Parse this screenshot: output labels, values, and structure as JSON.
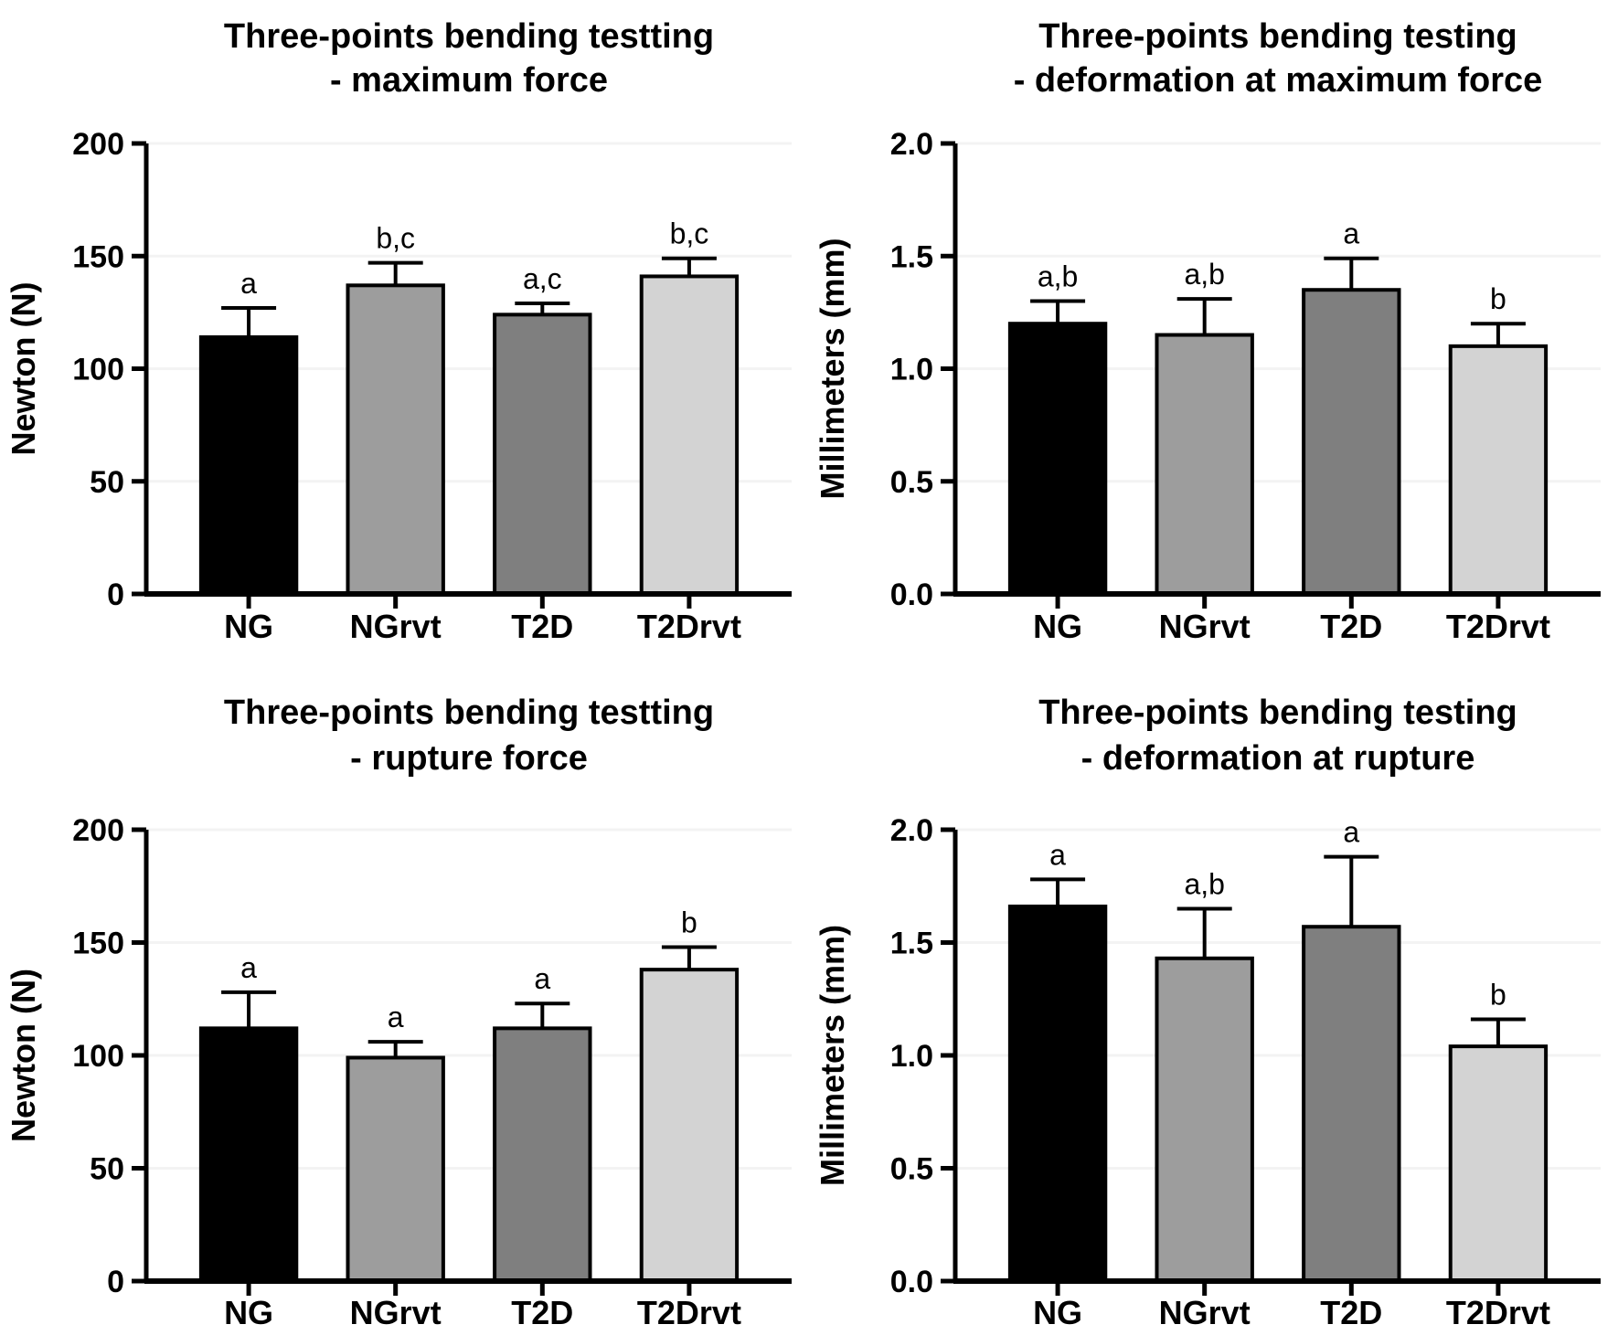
{
  "figure": {
    "background": "#ffffff",
    "text_color": "#000000",
    "axis_color": "#000000",
    "gridline_color": "#f3f3f3",
    "bar_border_color": "#000000",
    "bar_palette": [
      "#000000",
      "#9d9d9d",
      "#7f7f7f",
      "#d3d3d3"
    ]
  },
  "chart_data": [
    {
      "id": "maximum-force",
      "type": "bar",
      "title_line1": "Three-points bending testting",
      "title_line2": "- maximum force",
      "ylabel": "Newton (N)",
      "xlabel": "",
      "ylim": [
        0,
        200
      ],
      "yticks": [
        0,
        50,
        100,
        150,
        200
      ],
      "ytick_labels": [
        "0",
        "50",
        "100",
        "150",
        "200"
      ],
      "grid": true,
      "legend_position": "none",
      "categories": [
        "NG",
        "NGrvt",
        "T2D",
        "T2Drvt"
      ],
      "values": [
        114,
        137,
        124,
        141
      ],
      "errors_plus": [
        13,
        10,
        5,
        8
      ],
      "sig_labels": [
        "a",
        "b,c",
        "a,c",
        "b,c"
      ],
      "bar_colors": [
        "#000000",
        "#9d9d9d",
        "#7f7f7f",
        "#d3d3d3"
      ]
    },
    {
      "id": "deformation-at-maximum-force",
      "type": "bar",
      "title_line1": "Three-points bending testing",
      "title_line2": "- deformation at maximum force",
      "ylabel": "Millimeters (mm)",
      "xlabel": "",
      "ylim": [
        0,
        2.0
      ],
      "yticks": [
        0,
        0.5,
        1.0,
        1.5,
        2.0
      ],
      "ytick_labels": [
        "0.0",
        "0.5",
        "1.0",
        "1.5",
        "2.0"
      ],
      "grid": true,
      "legend_position": "none",
      "categories": [
        "NG",
        "NGrvt",
        "T2D",
        "T2Drvt"
      ],
      "values": [
        1.2,
        1.15,
        1.35,
        1.1
      ],
      "errors_plus": [
        0.1,
        0.16,
        0.14,
        0.1
      ],
      "sig_labels": [
        "a,b",
        "a,b",
        "a",
        "b"
      ],
      "bar_colors": [
        "#000000",
        "#9d9d9d",
        "#7f7f7f",
        "#d3d3d3"
      ]
    },
    {
      "id": "rupture-force",
      "type": "bar",
      "title_line1": "Three-points bending testting",
      "title_line2": "- rupture force",
      "ylabel": "Newton (N)",
      "xlabel": "",
      "ylim": [
        0,
        200
      ],
      "yticks": [
        0,
        50,
        100,
        150,
        200
      ],
      "ytick_labels": [
        "0",
        "50",
        "100",
        "150",
        "200"
      ],
      "grid": true,
      "legend_position": "none",
      "categories": [
        "NG",
        "NGrvt",
        "T2D",
        "T2Drvt"
      ],
      "values": [
        112,
        99,
        112,
        138
      ],
      "errors_plus": [
        16,
        7,
        11,
        10
      ],
      "sig_labels": [
        "a",
        "a",
        "a",
        "b"
      ],
      "bar_colors": [
        "#000000",
        "#9d9d9d",
        "#7f7f7f",
        "#d3d3d3"
      ]
    },
    {
      "id": "deformation-at-rupture",
      "type": "bar",
      "title_line1": "Three-points bending testing",
      "title_line2": "- deformation at rupture",
      "ylabel": "Millimeters (mm)",
      "xlabel": "",
      "ylim": [
        0,
        2.0
      ],
      "yticks": [
        0,
        0.5,
        1.0,
        1.5,
        2.0
      ],
      "ytick_labels": [
        "0.0",
        "0.5",
        "1.0",
        "1.5",
        "2.0"
      ],
      "grid": true,
      "legend_position": "none",
      "categories": [
        "NG",
        "NGrvt",
        "T2D",
        "T2Drvt"
      ],
      "values": [
        1.66,
        1.43,
        1.57,
        1.04
      ],
      "errors_plus": [
        0.12,
        0.22,
        0.31,
        0.12
      ],
      "sig_labels": [
        "a",
        "a,b",
        "a",
        "b"
      ],
      "bar_colors": [
        "#000000",
        "#9d9d9d",
        "#7f7f7f",
        "#d3d3d3"
      ]
    }
  ]
}
